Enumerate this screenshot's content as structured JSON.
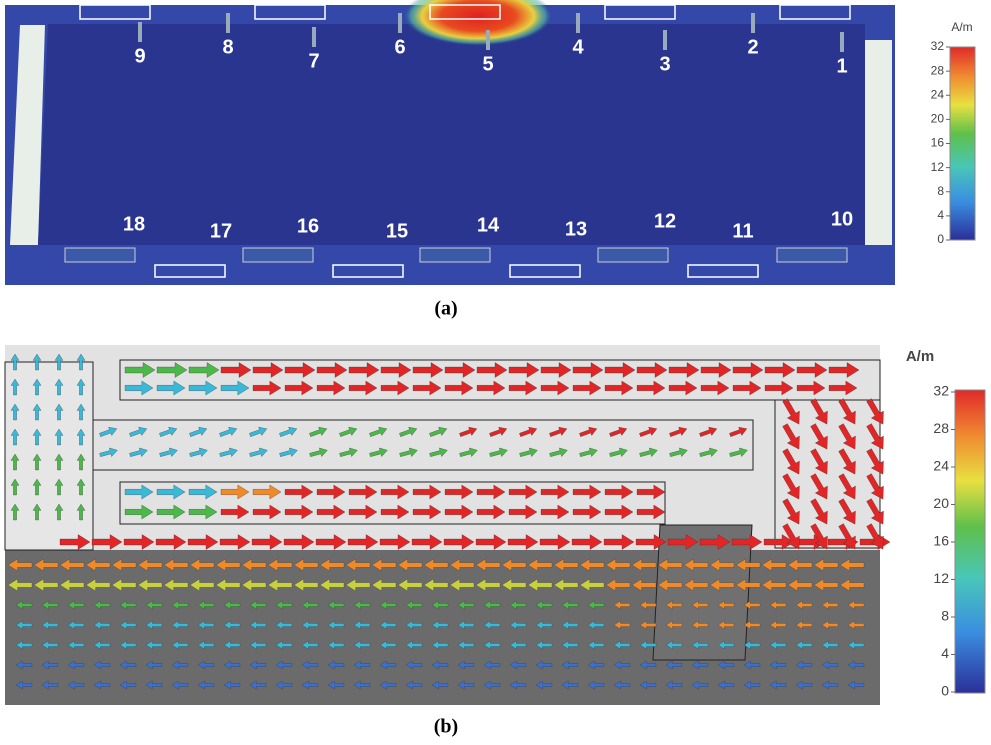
{
  "panel_a": {
    "caption": "(a)",
    "top_ports": [
      "9",
      "8",
      "7",
      "6",
      "5",
      "4",
      "3",
      "2",
      "1"
    ],
    "bottom_ports": [
      "18",
      "17",
      "16",
      "15",
      "14",
      "13",
      "12",
      "11",
      "10"
    ],
    "colorbar": {
      "unit": "A/m",
      "ticks": [
        0,
        4,
        8,
        12,
        16,
        20,
        24,
        28,
        32
      ]
    }
  },
  "panel_b": {
    "caption": "(b)",
    "colorbar": {
      "unit": "A/m",
      "ticks": [
        0,
        4,
        8,
        12,
        16,
        20,
        24,
        28,
        32
      ]
    }
  }
}
